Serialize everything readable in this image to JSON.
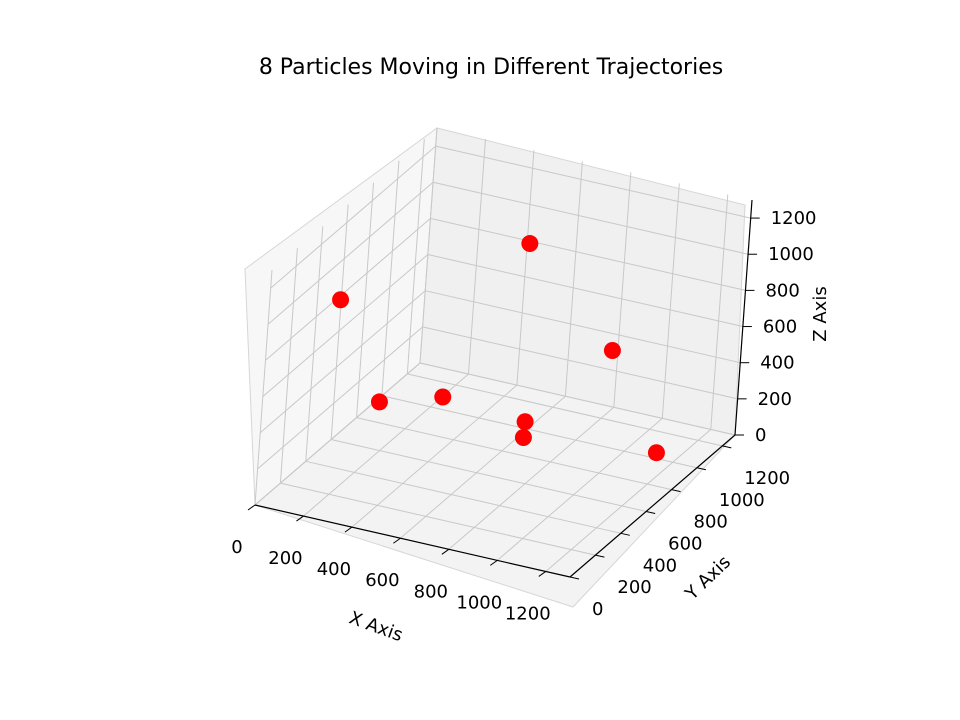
{
  "chart_data": {
    "type": "scatter",
    "projection": "3d",
    "title": "8 Particles Moving in Different Trajectories",
    "xlabel": "X Axis",
    "ylabel": "Y Axis",
    "zlabel": "Z Axis",
    "xlim": [
      0,
      1300
    ],
    "ylim": [
      0,
      1300
    ],
    "zlim": [
      0,
      1300
    ],
    "xticks": [
      0,
      200,
      400,
      600,
      800,
      1000,
      1200
    ],
    "yticks": [
      0,
      200,
      400,
      600,
      800,
      1000,
      1200
    ],
    "zticks": [
      0,
      200,
      400,
      600,
      800,
      1000,
      1200
    ],
    "xtick_labels": [
      "0",
      "200",
      "400",
      "600",
      "800",
      "1000",
      "1200"
    ],
    "ytick_labels": [
      "0",
      "200",
      "400",
      "600",
      "800",
      "1000",
      "1200"
    ],
    "ztick_labels": [
      "0",
      "200",
      "400",
      "600",
      "800",
      "1000",
      "1200"
    ],
    "grid": true,
    "marker_color": "#ff0000",
    "series": [
      {
        "name": "particles",
        "points": [
          {
            "x": 60,
            "y": 470,
            "z": 870
          },
          {
            "x": 580,
            "y": 950,
            "z": 1050
          },
          {
            "x": 700,
            "y": 770,
            "z": 210
          },
          {
            "x": 850,
            "y": 1150,
            "z": 420
          },
          {
            "x": 780,
            "y": 600,
            "z": 250
          },
          {
            "x": 460,
            "y": 560,
            "z": 400
          },
          {
            "x": 330,
            "y": 300,
            "z": 490
          },
          {
            "x": 1310,
            "y": 630,
            "z": 310
          }
        ]
      }
    ]
  }
}
